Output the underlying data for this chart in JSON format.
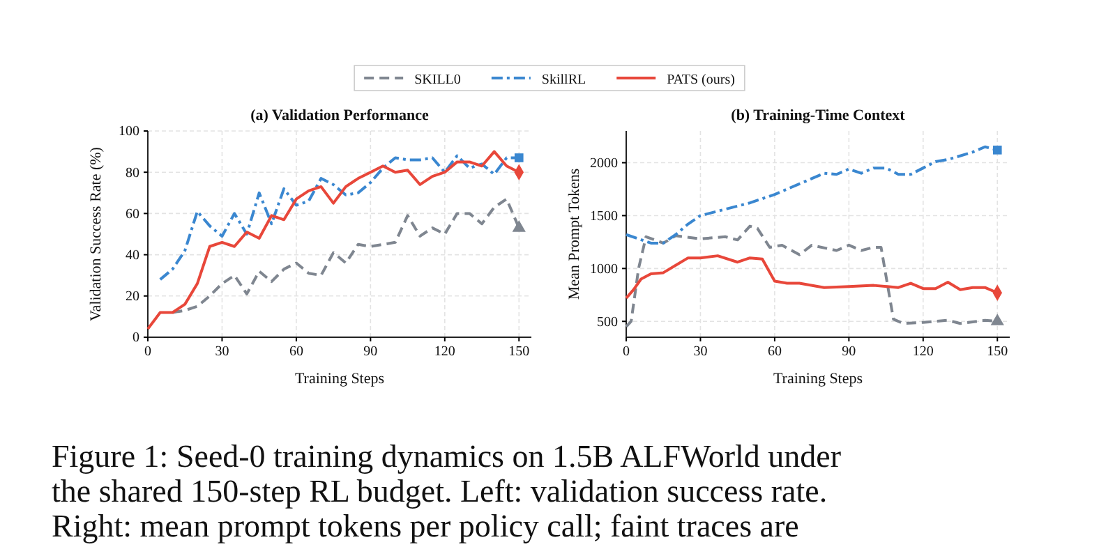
{
  "chart_data": [
    {
      "type": "line",
      "title": "(a) Validation Performance",
      "xlabel": "Training Steps",
      "ylabel": "Validation Success Rate (%)",
      "xlim": [
        0,
        155
      ],
      "xticks": [
        0,
        30,
        60,
        90,
        120,
        150
      ],
      "ylim": [
        0,
        100
      ],
      "yticks": [
        0,
        20,
        40,
        60,
        80,
        100
      ],
      "grid": true,
      "legend": "top",
      "annotations": [
        "Figure 1: Seed-0 training dynamics on 1.5B ALFWorld under",
        "the shared 150-step RL budget. Left: validation success rate.",
        "Right: mean prompt tokens per policy call; faint traces are"
      ],
      "series": [
        {
          "name": "SKILL0",
          "color": "#7f8690",
          "line_style": "dashed",
          "x": [
            10,
            15,
            20,
            25,
            30,
            35,
            40,
            45,
            50,
            55,
            60,
            65,
            70,
            75,
            80,
            85,
            90,
            95,
            100,
            105,
            110,
            115,
            120,
            125,
            130,
            135,
            140,
            145,
            150
          ],
          "values": [
            12,
            13,
            15,
            20,
            26,
            30,
            21,
            32,
            27,
            33,
            36,
            31,
            30,
            41,
            36,
            45,
            44,
            45,
            46,
            59,
            49,
            53,
            50,
            60,
            60,
            55,
            63,
            67,
            53
          ]
        },
        {
          "name": "SkillRL",
          "color": "#3a87d0",
          "line_style": "dashdot",
          "x": [
            5,
            10,
            15,
            20,
            25,
            30,
            35,
            40,
            45,
            50,
            55,
            60,
            65,
            70,
            75,
            80,
            85,
            90,
            95,
            100,
            105,
            110,
            115,
            120,
            125,
            130,
            135,
            140,
            145,
            150
          ],
          "values": [
            28,
            33,
            42,
            61,
            54,
            49,
            60,
            50,
            70,
            55,
            72,
            64,
            66,
            77,
            74,
            69,
            70,
            75,
            82,
            87,
            86,
            86,
            87,
            80,
            88,
            82,
            84,
            79,
            87,
            87
          ]
        },
        {
          "name": "PATS (ours)",
          "color": "#e8473a",
          "line_style": "solid",
          "x": [
            0,
            5,
            10,
            15,
            20,
            25,
            30,
            35,
            40,
            45,
            50,
            55,
            60,
            65,
            70,
            75,
            80,
            85,
            90,
            95,
            100,
            105,
            110,
            115,
            120,
            125,
            130,
            135,
            140,
            145,
            150
          ],
          "values": [
            4,
            12,
            12,
            16,
            26,
            44,
            46,
            44,
            51,
            48,
            59,
            57,
            67,
            71,
            73,
            65,
            73,
            77,
            80,
            83,
            80,
            81,
            74,
            78,
            80,
            85,
            85,
            83,
            90,
            83,
            80
          ]
        },
        {
          "type": "scatter",
          "color": "#7f8690",
          "marker": "triangle",
          "x": [
            150
          ],
          "values": [
            53
          ]
        },
        {
          "type": "scatter",
          "color": "#3a87d0",
          "marker": "square",
          "x": [
            150
          ],
          "values": [
            87
          ]
        },
        {
          "type": "scatter",
          "color": "#e8473a",
          "marker": "diamond",
          "x": [
            150
          ],
          "values": [
            80
          ]
        }
      ]
    },
    {
      "type": "line",
      "title": "(b) Training-Time Context",
      "xlabel": "Training Steps",
      "ylabel": "Mean Prompt Tokens",
      "xlim": [
        0,
        155
      ],
      "xticks": [
        0,
        30,
        60,
        90,
        120,
        150
      ],
      "ylim": [
        350,
        2300
      ],
      "yticks": [
        500,
        1000,
        1500,
        2000
      ],
      "grid": true,
      "series": [
        {
          "color": "#7f8690",
          "line_style": "dashed",
          "x": [
            0,
            2,
            5,
            8,
            15,
            20,
            30,
            40,
            45,
            50,
            53,
            58,
            63,
            70,
            75,
            85,
            90,
            95,
            100,
            103,
            108,
            112,
            120,
            130,
            135,
            145,
            150
          ],
          "values": [
            450,
            500,
            1000,
            1300,
            1240,
            1310,
            1280,
            1300,
            1270,
            1400,
            1380,
            1200,
            1220,
            1130,
            1220,
            1170,
            1220,
            1170,
            1200,
            1200,
            520,
            480,
            490,
            510,
            480,
            510,
            500
          ]
        },
        {
          "color": "#3a87d0",
          "line_style": "dashdot",
          "x": [
            0,
            5,
            10,
            15,
            20,
            25,
            30,
            40,
            50,
            55,
            60,
            70,
            80,
            85,
            90,
            95,
            100,
            105,
            110,
            115,
            120,
            125,
            130,
            140,
            145,
            150
          ],
          "values": [
            1320,
            1280,
            1240,
            1240,
            1320,
            1420,
            1500,
            1560,
            1620,
            1660,
            1700,
            1800,
            1900,
            1890,
            1940,
            1900,
            1950,
            1950,
            1890,
            1890,
            1950,
            2010,
            2030,
            2100,
            2150,
            2120
          ]
        },
        {
          "color": "#e8473a",
          "line_style": "solid",
          "x": [
            0,
            3,
            6,
            10,
            15,
            20,
            25,
            30,
            37,
            45,
            50,
            55,
            60,
            65,
            70,
            80,
            90,
            100,
            110,
            115,
            120,
            125,
            130,
            135,
            140,
            145,
            150
          ],
          "values": [
            720,
            800,
            900,
            950,
            960,
            1030,
            1100,
            1100,
            1120,
            1060,
            1100,
            1090,
            880,
            860,
            860,
            820,
            830,
            840,
            820,
            860,
            810,
            810,
            870,
            800,
            820,
            820,
            770
          ]
        },
        {
          "type": "scatter",
          "color": "#7f8690",
          "marker": "triangle",
          "x": [
            150
          ],
          "values": [
            500
          ]
        },
        {
          "type": "scatter",
          "color": "#3a87d0",
          "marker": "square",
          "x": [
            150
          ],
          "values": [
            2120
          ]
        },
        {
          "type": "scatter",
          "color": "#e8473a",
          "marker": "diamond",
          "x": [
            150
          ],
          "values": [
            770
          ]
        }
      ]
    }
  ]
}
